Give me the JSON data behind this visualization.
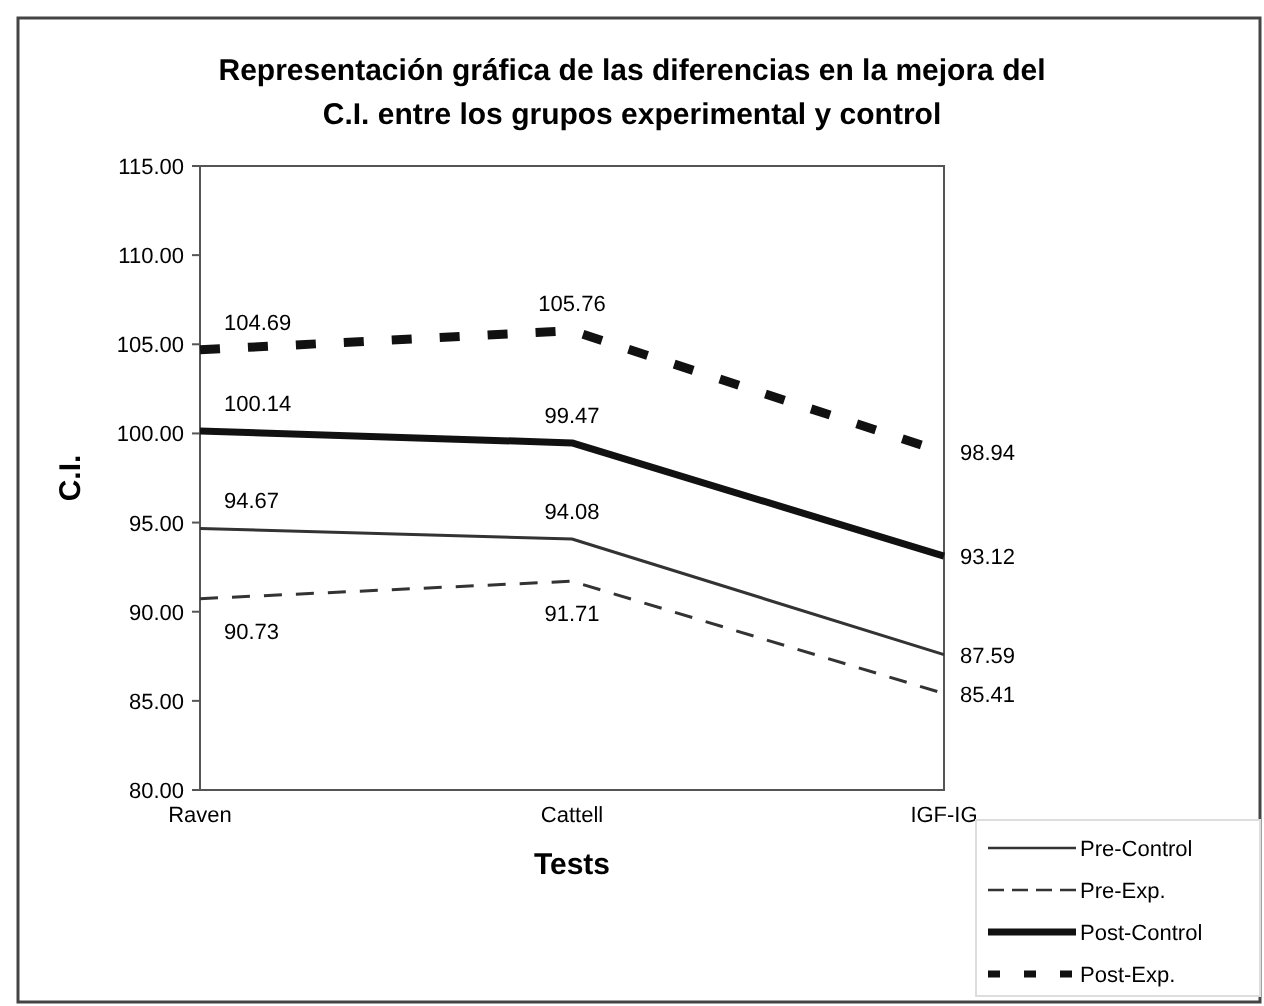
{
  "chart_data": {
    "type": "line",
    "title": "Representación gráfica de las diferencias en la mejora del C.I. entre los grupos experimental y control",
    "xlabel": "Tests",
    "ylabel": "C.I.",
    "categories": [
      "Raven",
      "Cattell",
      "IGF-IG"
    ],
    "series": [
      {
        "name": "Pre-Control",
        "color": "#333333",
        "line_style": "solid",
        "values": [
          94.67,
          94.08,
          87.59
        ]
      },
      {
        "name": "Pre-Exp.",
        "color": "#333333",
        "line_style": "dashed",
        "values": [
          90.73,
          91.71,
          85.41
        ]
      },
      {
        "name": "Post-Control",
        "color": "#111111",
        "line_style": "solid",
        "values": [
          100.14,
          99.47,
          93.12
        ]
      },
      {
        "name": "Post-Exp.",
        "color": "#111111",
        "line_style": "dashed",
        "values": [
          104.69,
          105.76,
          98.94
        ]
      }
    ],
    "ylim": [
      80,
      115
    ],
    "yticks": [
      {
        "value": 80,
        "label": "80.00"
      },
      {
        "value": 85,
        "label": "85.00"
      },
      {
        "value": 90,
        "label": "90.00"
      },
      {
        "value": 95,
        "label": "95.00"
      },
      {
        "value": 100,
        "label": "100.00"
      },
      {
        "value": 105,
        "label": "105.00"
      },
      {
        "value": 110,
        "label": "110.00"
      },
      {
        "value": 115,
        "label": "115.00"
      }
    ],
    "grid": false,
    "legend": "bottom right",
    "marker": "none",
    "data_labels": true
  }
}
